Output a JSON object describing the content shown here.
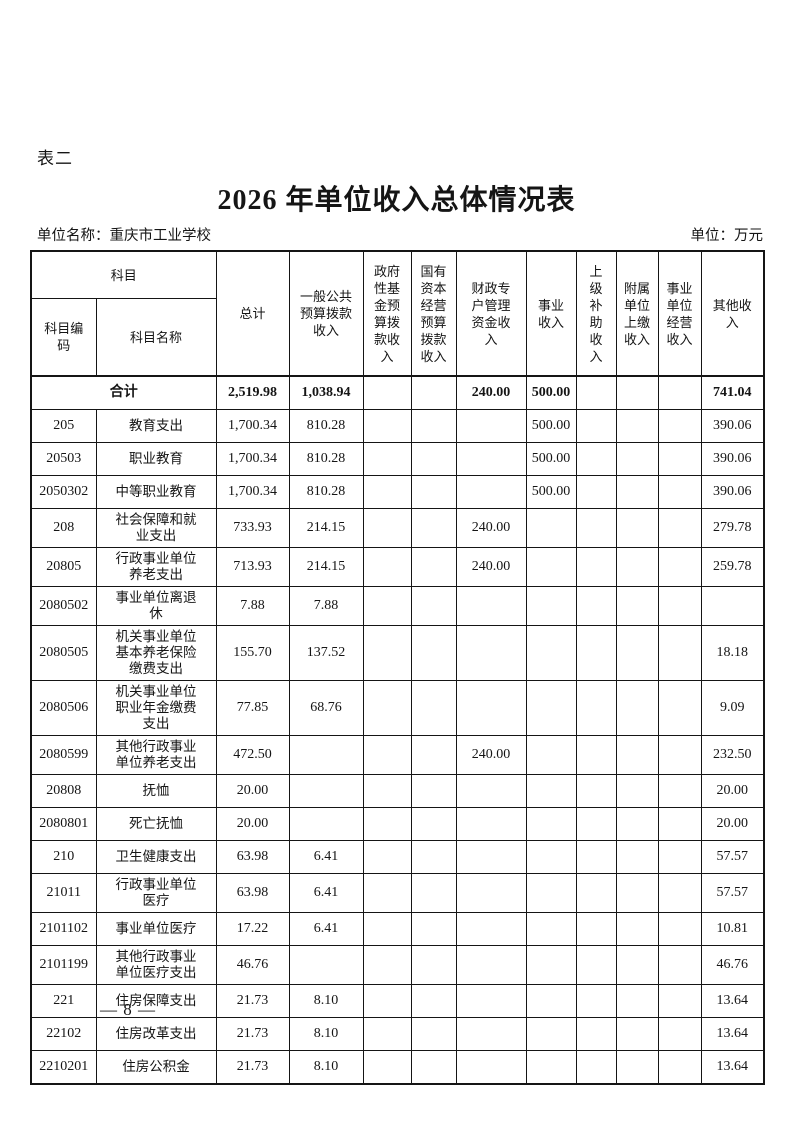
{
  "page": {
    "table_label": "表二",
    "title": "2026 年单位收入总体情况表",
    "unit_name": "单位名称：重庆市工业学校",
    "unit_of_measure": "单位：万元",
    "page_number": "— 8 —"
  },
  "table": {
    "header": {
      "subject": "科目",
      "subject_code": "科目编\n码",
      "subject_name": "科目名称",
      "columns": [
        "总计",
        "一般公共\n预算拨款\n收入",
        "政府\n性基\n金预\n算拨\n款收\n入",
        "国有\n资本\n经营\n预算\n拨款\n收入",
        "财政专\n户管理\n资金收\n入",
        "事业\n收入",
        "上\n级\n补\n助\n收\n入",
        "附属\n单位\n上缴\n收入",
        "事业\n单位\n经营\n收入",
        "其他收\n入"
      ]
    },
    "total_row": {
      "label": "合计",
      "values": [
        "2,519.98",
        "1,038.94",
        "",
        "",
        "240.00",
        "500.00",
        "",
        "",
        "",
        "741.04"
      ]
    },
    "rows": [
      {
        "code": "205",
        "name": "教育支出",
        "values": [
          "1,700.34",
          "810.28",
          "",
          "",
          "",
          "500.00",
          "",
          "",
          "",
          "390.06"
        ]
      },
      {
        "code": "20503",
        "name": "职业教育",
        "values": [
          "1,700.34",
          "810.28",
          "",
          "",
          "",
          "500.00",
          "",
          "",
          "",
          "390.06"
        ]
      },
      {
        "code": "2050302",
        "name": "中等职业教育",
        "values": [
          "1,700.34",
          "810.28",
          "",
          "",
          "",
          "500.00",
          "",
          "",
          "",
          "390.06"
        ]
      },
      {
        "code": "208",
        "name": "社会保障和就业支出",
        "values": [
          "733.93",
          "214.15",
          "",
          "",
          "240.00",
          "",
          "",
          "",
          "",
          "279.78"
        ]
      },
      {
        "code": "20805",
        "name": "行政事业单位养老支出",
        "values": [
          "713.93",
          "214.15",
          "",
          "",
          "240.00",
          "",
          "",
          "",
          "",
          "259.78"
        ]
      },
      {
        "code": "2080502",
        "name": "事业单位离退休",
        "values": [
          "7.88",
          "7.88",
          "",
          "",
          "",
          "",
          "",
          "",
          "",
          ""
        ]
      },
      {
        "code": "2080505",
        "name": "机关事业单位基本养老保险缴费支出",
        "values": [
          "155.70",
          "137.52",
          "",
          "",
          "",
          "",
          "",
          "",
          "",
          "18.18"
        ]
      },
      {
        "code": "2080506",
        "name": "机关事业单位职业年金缴费支出",
        "values": [
          "77.85",
          "68.76",
          "",
          "",
          "",
          "",
          "",
          "",
          "",
          "9.09"
        ]
      },
      {
        "code": "2080599",
        "name": "其他行政事业单位养老支出",
        "values": [
          "472.50",
          "",
          "",
          "",
          "240.00",
          "",
          "",
          "",
          "",
          "232.50"
        ]
      },
      {
        "code": "20808",
        "name": "抚恤",
        "values": [
          "20.00",
          "",
          "",
          "",
          "",
          "",
          "",
          "",
          "",
          "20.00"
        ]
      },
      {
        "code": "2080801",
        "name": "死亡抚恤",
        "values": [
          "20.00",
          "",
          "",
          "",
          "",
          "",
          "",
          "",
          "",
          "20.00"
        ]
      },
      {
        "code": "210",
        "name": "卫生健康支出",
        "values": [
          "63.98",
          "6.41",
          "",
          "",
          "",
          "",
          "",
          "",
          "",
          "57.57"
        ]
      },
      {
        "code": "21011",
        "name": "行政事业单位医疗",
        "values": [
          "63.98",
          "6.41",
          "",
          "",
          "",
          "",
          "",
          "",
          "",
          "57.57"
        ]
      },
      {
        "code": "2101102",
        "name": "事业单位医疗",
        "values": [
          "17.22",
          "6.41",
          "",
          "",
          "",
          "",
          "",
          "",
          "",
          "10.81"
        ]
      },
      {
        "code": "2101199",
        "name": "其他行政事业单位医疗支出",
        "values": [
          "46.76",
          "",
          "",
          "",
          "",
          "",
          "",
          "",
          "",
          "46.76"
        ]
      },
      {
        "code": "221",
        "name": "住房保障支出",
        "values": [
          "21.73",
          "8.10",
          "",
          "",
          "",
          "",
          "",
          "",
          "",
          "13.64"
        ]
      },
      {
        "code": "22102",
        "name": "住房改革支出",
        "values": [
          "21.73",
          "8.10",
          "",
          "",
          "",
          "",
          "",
          "",
          "",
          "13.64"
        ]
      },
      {
        "code": "2210201",
        "name": "住房公积金",
        "values": [
          "21.73",
          "8.10",
          "",
          "",
          "",
          "",
          "",
          "",
          "",
          "13.64"
        ]
      }
    ]
  }
}
